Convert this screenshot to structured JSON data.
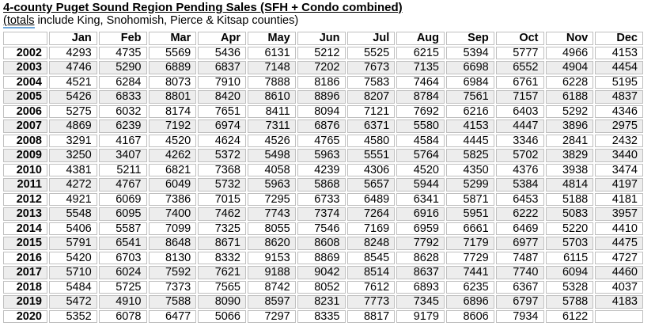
{
  "title": "4-county Puget Sound Region Pending Sales (SFH + Condo combined)",
  "subtitle": {
    "linked_word": "(totals",
    "rest": " include King, Snohomish, Pierce & Kitsap counties)"
  },
  "colors": {
    "link_underline": "#6fa8dc",
    "grid_border": "#bfbfbf",
    "row_stripe": "#ededed"
  },
  "table": {
    "corner_label": "",
    "months": [
      "Jan",
      "Feb",
      "Mar",
      "Apr",
      "May",
      "Jun",
      "Jul",
      "Aug",
      "Sep",
      "Oct",
      "Nov",
      "Dec"
    ],
    "rows": [
      {
        "year": "2002",
        "values": [
          "4293",
          "4735",
          "5569",
          "5436",
          "6131",
          "5212",
          "5525",
          "6215",
          "5394",
          "5777",
          "4966",
          "4153"
        ]
      },
      {
        "year": "2003",
        "values": [
          "4746",
          "5290",
          "6889",
          "6837",
          "7148",
          "7202",
          "7673",
          "7135",
          "6698",
          "6552",
          "4904",
          "4454"
        ]
      },
      {
        "year": "2004",
        "values": [
          "4521",
          "6284",
          "8073",
          "7910",
          "7888",
          "8186",
          "7583",
          "7464",
          "6984",
          "6761",
          "6228",
          "5195"
        ]
      },
      {
        "year": "2005",
        "values": [
          "5426",
          "6833",
          "8801",
          "8420",
          "8610",
          "8896",
          "8207",
          "8784",
          "7561",
          "7157",
          "6188",
          "4837"
        ]
      },
      {
        "year": "2006",
        "values": [
          "5275",
          "6032",
          "8174",
          "7651",
          "8411",
          "8094",
          "7121",
          "7692",
          "6216",
          "6403",
          "5292",
          "4346"
        ]
      },
      {
        "year": "2007",
        "values": [
          "4869",
          "6239",
          "7192",
          "6974",
          "7311",
          "6876",
          "6371",
          "5580",
          "4153",
          "4447",
          "3896",
          "2975"
        ]
      },
      {
        "year": "2008",
        "values": [
          "3291",
          "4167",
          "4520",
          "4624",
          "4526",
          "4765",
          "4580",
          "4584",
          "4445",
          "3346",
          "2841",
          "2432"
        ]
      },
      {
        "year": "2009",
        "values": [
          "3250",
          "3407",
          "4262",
          "5372",
          "5498",
          "5963",
          "5551",
          "5764",
          "5825",
          "5702",
          "3829",
          "3440"
        ]
      },
      {
        "year": "2010",
        "values": [
          "4381",
          "5211",
          "6821",
          "7368",
          "4058",
          "4239",
          "4306",
          "4520",
          "4350",
          "4376",
          "3938",
          "3474"
        ]
      },
      {
        "year": "2011",
        "values": [
          "4272",
          "4767",
          "6049",
          "5732",
          "5963",
          "5868",
          "5657",
          "5944",
          "5299",
          "5384",
          "4814",
          "4197"
        ]
      },
      {
        "year": "2012",
        "values": [
          "4921",
          "6069",
          "7386",
          "7015",
          "7295",
          "6733",
          "6489",
          "6341",
          "5871",
          "6453",
          "5188",
          "4181"
        ]
      },
      {
        "year": "2013",
        "values": [
          "5548",
          "6095",
          "7400",
          "7462",
          "7743",
          "7374",
          "7264",
          "6916",
          "5951",
          "6222",
          "5083",
          "3957"
        ]
      },
      {
        "year": "2014",
        "values": [
          "5406",
          "5587",
          "7099",
          "7325",
          "8055",
          "7546",
          "7169",
          "6959",
          "6661",
          "6469",
          "5220",
          "4410"
        ]
      },
      {
        "year": "2015",
        "values": [
          "5791",
          "6541",
          "8648",
          "8671",
          "8620",
          "8608",
          "8248",
          "7792",
          "7179",
          "6977",
          "5703",
          "4475"
        ]
      },
      {
        "year": "2016",
        "values": [
          "5420",
          "6703",
          "8130",
          "8332",
          "9153",
          "8869",
          "8545",
          "8628",
          "7729",
          "7487",
          "6115",
          "4727"
        ]
      },
      {
        "year": "2017",
        "values": [
          "5710",
          "6024",
          "7592",
          "7621",
          "9188",
          "9042",
          "8514",
          "8637",
          "7441",
          "7740",
          "6094",
          "4460"
        ]
      },
      {
        "year": "2018",
        "values": [
          "5484",
          "5725",
          "7373",
          "7565",
          "8742",
          "8052",
          "7612",
          "6893",
          "6235",
          "6367",
          "5328",
          "4037"
        ]
      },
      {
        "year": "2019",
        "values": [
          "5472",
          "4910",
          "7588",
          "8090",
          "8597",
          "8231",
          "7773",
          "7345",
          "6896",
          "6797",
          "5788",
          "4183"
        ]
      },
      {
        "year": "2020",
        "values": [
          "5352",
          "6078",
          "6477",
          "5066",
          "7297",
          "8335",
          "8817",
          "9179",
          "8606",
          "7934",
          "6122",
          ""
        ]
      }
    ]
  }
}
